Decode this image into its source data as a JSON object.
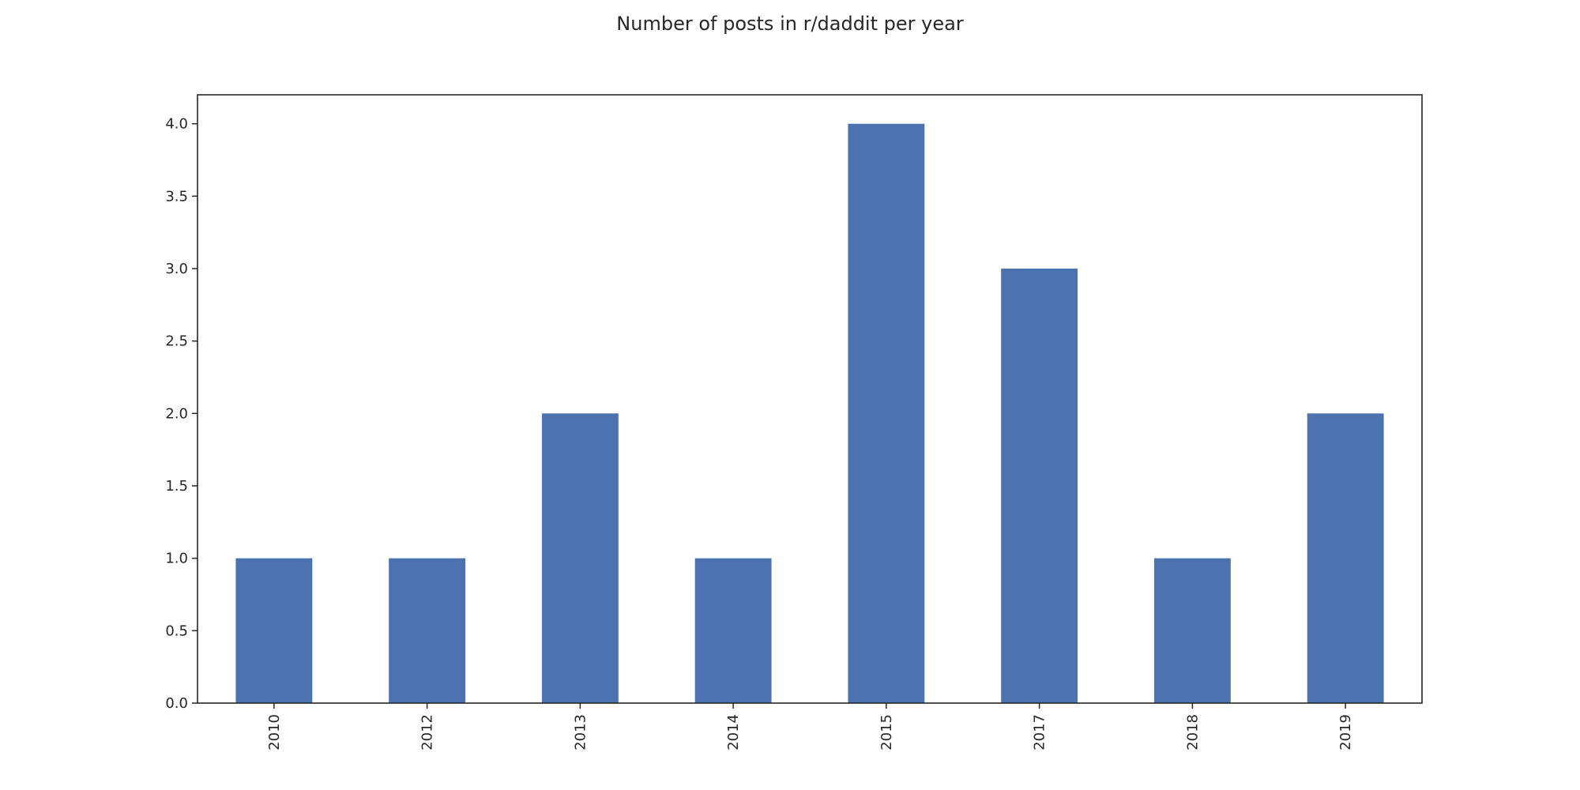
{
  "chart_data": {
    "type": "bar",
    "title": "Number of posts in r/daddit per year",
    "xlabel": "",
    "ylabel": "",
    "categories": [
      "2010",
      "2012",
      "2013",
      "2014",
      "2015",
      "2017",
      "2018",
      "2019"
    ],
    "values": [
      1,
      1,
      2,
      1,
      4,
      3,
      1,
      2
    ],
    "ylim": [
      0,
      4.2
    ],
    "yticks": [
      "0.0",
      "0.5",
      "1.0",
      "1.5",
      "2.0",
      "2.5",
      "3.0",
      "3.5",
      "4.0"
    ],
    "x_tick_rotation": "vertical",
    "grid": false,
    "legend": false,
    "colors": {
      "bar": "#4c72b0"
    }
  }
}
